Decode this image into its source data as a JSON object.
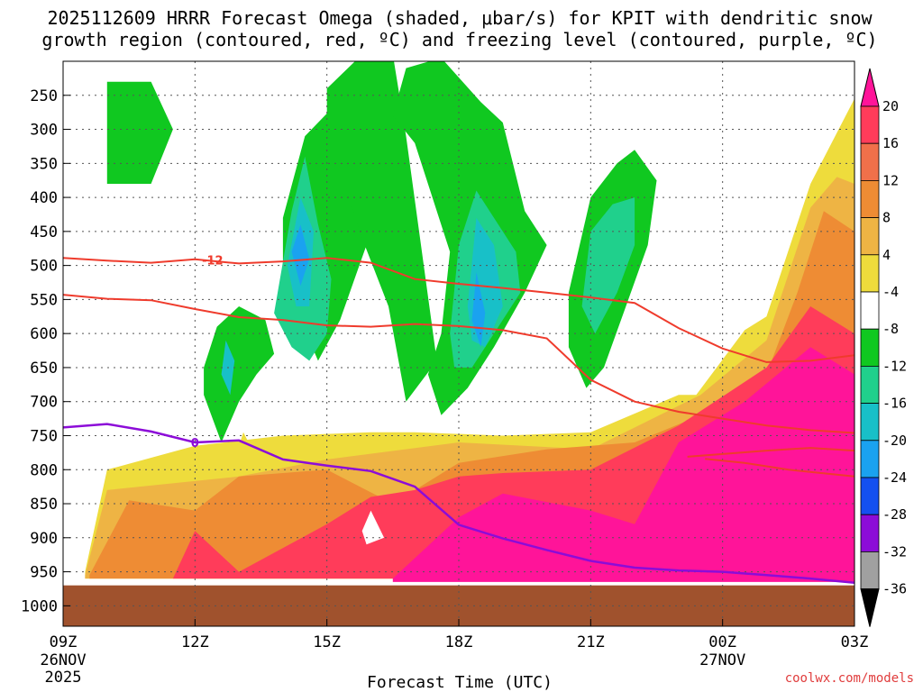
{
  "chart_data": {
    "type": "contour",
    "title_line1": "2025112609 HRRR Forecast Omega (shaded, μbar/s) for KPIT with dendritic snow",
    "title_line2": "growth region (contoured, red, ºC) and freezing level (contoured, purple, ºC)",
    "xlabel": "Forecast Time (UTC)",
    "credit": "coolwx.com/models",
    "x_hours": [
      0,
      3,
      6,
      9,
      12,
      15,
      18
    ],
    "x_tick_labels": [
      "09Z",
      "12Z",
      "15Z",
      "18Z",
      "21Z",
      "00Z",
      "03Z"
    ],
    "x_date_labels": [
      {
        "hour": 0,
        "lines": [
          "26NOV",
          "2025"
        ]
      },
      {
        "hour": 15,
        "lines": [
          "27NOV"
        ]
      }
    ],
    "y_levels_hpa": [
      250,
      300,
      350,
      400,
      450,
      500,
      550,
      600,
      650,
      700,
      750,
      800,
      850,
      900,
      950,
      1000
    ],
    "y_range_hpa": [
      200,
      1030
    ],
    "ground_level_hpa": 970,
    "colorbar": {
      "labels": [
        "20",
        "16",
        "12",
        "8",
        "4",
        "-4",
        "-8",
        "-12",
        "-16",
        "-20",
        "-24",
        "-28",
        "-32",
        "-36"
      ],
      "colors": [
        "#ff3c5a",
        "#f0704a",
        "#ee8c34",
        "#eeb444",
        "#eedc3c",
        "#ffffff",
        "#10c820",
        "#20d08c",
        "#18c0c8",
        "#1aa2f0",
        "#1450f0",
        "#8c0cd8",
        "#a0a0a0"
      ],
      "top_color": "#ff1499",
      "bottom_color": "#000000"
    },
    "red_contours": [
      {
        "label": "-12",
        "label_hour": 3.4,
        "points": [
          [
            0,
            489
          ],
          [
            1,
            493
          ],
          [
            2,
            496
          ],
          [
            3,
            491
          ],
          [
            4,
            497
          ],
          [
            5,
            494
          ],
          [
            6,
            489
          ],
          [
            7,
            496
          ],
          [
            8,
            520
          ],
          [
            9,
            527
          ],
          [
            10,
            533
          ],
          [
            11,
            540
          ],
          [
            12,
            547
          ],
          [
            13,
            555
          ],
          [
            14,
            592
          ],
          [
            15,
            622
          ],
          [
            16,
            642
          ],
          [
            17,
            640
          ],
          [
            18,
            632
          ]
        ]
      },
      {
        "points": [
          [
            0,
            543
          ],
          [
            1,
            549
          ],
          [
            2,
            551
          ],
          [
            3,
            564
          ],
          [
            4,
            576
          ],
          [
            5,
            580
          ],
          [
            6,
            588
          ],
          [
            7,
            590
          ],
          [
            8,
            586
          ],
          [
            9,
            589
          ],
          [
            10,
            595
          ],
          [
            11,
            607
          ],
          [
            12,
            668
          ],
          [
            13,
            700
          ],
          [
            14,
            715
          ],
          [
            15,
            725
          ],
          [
            16,
            735
          ],
          [
            17,
            742
          ],
          [
            18,
            746
          ]
        ]
      },
      {
        "points": [
          [
            14.2,
            781
          ],
          [
            15,
            777
          ],
          [
            16,
            772
          ],
          [
            17,
            768
          ],
          [
            18,
            772
          ]
        ]
      },
      {
        "points": [
          [
            14.6,
            784
          ],
          [
            15.5,
            790
          ],
          [
            16.5,
            800
          ],
          [
            18,
            810
          ]
        ]
      }
    ],
    "purple_contour": {
      "label": "0",
      "label_hour": 3,
      "points": [
        [
          0,
          738
        ],
        [
          1,
          733
        ],
        [
          2,
          744
        ],
        [
          3,
          760
        ],
        [
          4,
          757
        ],
        [
          5,
          785
        ],
        [
          6,
          794
        ],
        [
          7,
          802
        ],
        [
          8,
          825
        ],
        [
          9,
          881
        ],
        [
          10,
          901
        ],
        [
          11,
          918
        ],
        [
          12,
          934
        ],
        [
          13,
          944
        ],
        [
          14,
          948
        ],
        [
          15,
          950
        ],
        [
          16,
          955
        ],
        [
          17,
          960
        ],
        [
          18,
          966
        ]
      ]
    },
    "omega_regions": [
      {
        "value": 8,
        "color": "#eedc3c",
        "points": [
          [
            0.5,
            950
          ],
          [
            1,
            800
          ],
          [
            3,
            765
          ],
          [
            5,
            750
          ],
          [
            7,
            745
          ],
          [
            8,
            745
          ],
          [
            10,
            750
          ],
          [
            12,
            745
          ],
          [
            14,
            690
          ],
          [
            14.4,
            690
          ],
          [
            15.5,
            595
          ],
          [
            16,
            575
          ],
          [
            17,
            380
          ],
          [
            18,
            255
          ],
          [
            18,
            960
          ],
          [
            0.5,
            960
          ]
        ]
      },
      {
        "value": 10,
        "color": "#eeb444",
        "points": [
          [
            0.5,
            955
          ],
          [
            1,
            830
          ],
          [
            4,
            810
          ],
          [
            6,
            785
          ],
          [
            9,
            760
          ],
          [
            12,
            770
          ],
          [
            14.5,
            690
          ],
          [
            16,
            610
          ],
          [
            17,
            415
          ],
          [
            17.6,
            370
          ],
          [
            18,
            380
          ],
          [
            18,
            960
          ],
          [
            0.5,
            960
          ]
        ]
      },
      {
        "value": 14,
        "color": "#ee8c34",
        "points": [
          [
            0.6,
            955
          ],
          [
            1.5,
            845
          ],
          [
            3,
            860
          ],
          [
            4,
            810
          ],
          [
            6,
            800
          ],
          [
            7.5,
            850
          ],
          [
            9,
            790
          ],
          [
            11,
            770
          ],
          [
            13,
            760
          ],
          [
            14.5,
            720
          ],
          [
            16,
            660
          ],
          [
            16.7,
            540
          ],
          [
            17.3,
            420
          ],
          [
            18,
            450
          ],
          [
            18,
            960
          ],
          [
            0.6,
            960
          ]
        ]
      },
      {
        "value": 18,
        "color": "#ff3c5a",
        "points": [
          [
            2.5,
            960
          ],
          [
            3,
            890
          ],
          [
            4,
            950
          ],
          [
            6,
            880
          ],
          [
            7,
            840
          ],
          [
            8,
            830
          ],
          [
            9,
            810
          ],
          [
            10,
            805
          ],
          [
            12,
            800
          ],
          [
            14,
            735
          ],
          [
            16,
            650
          ],
          [
            17,
            560
          ],
          [
            18,
            600
          ],
          [
            18,
            960
          ],
          [
            2.5,
            960
          ]
        ]
      },
      {
        "value": 22,
        "color": "#ff1499",
        "points": [
          [
            7.5,
            960
          ],
          [
            9,
            870
          ],
          [
            10,
            835
          ],
          [
            12,
            860
          ],
          [
            13,
            880
          ],
          [
            14,
            760
          ],
          [
            15.5,
            700
          ],
          [
            17,
            620
          ],
          [
            18,
            660
          ],
          [
            18,
            965
          ],
          [
            7.5,
            965
          ]
        ]
      },
      {
        "value": -6,
        "color": "#10c820",
        "points": [
          [
            1,
            300
          ],
          [
            1,
            230
          ],
          [
            2,
            230
          ],
          [
            2.5,
            300
          ],
          [
            2,
            380
          ],
          [
            1,
            380
          ]
        ]
      },
      {
        "value": -6,
        "color": "#10c820",
        "points": [
          [
            3.2,
            650
          ],
          [
            3.5,
            590
          ],
          [
            4,
            560
          ],
          [
            4.6,
            580
          ],
          [
            4.8,
            630
          ],
          [
            4.4,
            660
          ],
          [
            4,
            700
          ],
          [
            3.6,
            760
          ],
          [
            3.2,
            690
          ]
        ]
      },
      {
        "value": -6,
        "color": "#10c820",
        "points": [
          [
            5,
            430
          ],
          [
            5.5,
            310
          ],
          [
            6.4,
            250
          ],
          [
            6.8,
            200
          ],
          [
            7,
            330
          ],
          [
            6.9,
            470
          ],
          [
            6.3,
            580
          ],
          [
            5.8,
            640
          ],
          [
            5.4,
            580
          ],
          [
            5,
            520
          ]
        ]
      },
      {
        "value": -6,
        "color": "#10c820",
        "points": [
          [
            6,
            380
          ],
          [
            6,
            240
          ],
          [
            6.8,
            190
          ],
          [
            7.5,
            190
          ],
          [
            7.8,
            310
          ],
          [
            8.5,
            640
          ],
          [
            7.8,
            700
          ],
          [
            7.4,
            560
          ],
          [
            6.8,
            460
          ],
          [
            6.5,
            400
          ]
        ]
      },
      {
        "value": -6,
        "color": "#10c820",
        "points": [
          [
            7.5,
            280
          ],
          [
            7.8,
            210
          ],
          [
            8.6,
            195
          ],
          [
            9.5,
            260
          ],
          [
            10,
            290
          ],
          [
            10.5,
            420
          ],
          [
            11,
            470
          ],
          [
            10.5,
            540
          ],
          [
            9.8,
            620
          ],
          [
            9.2,
            680
          ],
          [
            8.6,
            720
          ],
          [
            8.3,
            660
          ],
          [
            8.6,
            600
          ],
          [
            8.8,
            480
          ],
          [
            8.4,
            400
          ],
          [
            8,
            320
          ]
        ]
      },
      {
        "value": -6,
        "color": "#10c820",
        "points": [
          [
            11.5,
            540
          ],
          [
            12,
            400
          ],
          [
            12.6,
            350
          ],
          [
            13,
            330
          ],
          [
            13.5,
            375
          ],
          [
            13.3,
            470
          ],
          [
            12.8,
            560
          ],
          [
            12.3,
            650
          ],
          [
            11.9,
            680
          ],
          [
            11.5,
            620
          ]
        ]
      },
      {
        "value": -10,
        "color": "#20d08c",
        "points": [
          [
            4.8,
            570
          ],
          [
            5.2,
            420
          ],
          [
            5.5,
            340
          ],
          [
            5.8,
            440
          ],
          [
            6.1,
            520
          ],
          [
            6,
            600
          ],
          [
            5.6,
            640
          ],
          [
            5.2,
            620
          ]
        ]
      },
      {
        "value": -10,
        "color": "#20d08c",
        "points": [
          [
            8.8,
            600
          ],
          [
            9,
            470
          ],
          [
            9.4,
            390
          ],
          [
            9.8,
            430
          ],
          [
            10.3,
            480
          ],
          [
            10.4,
            540
          ],
          [
            9.8,
            600
          ],
          [
            9.3,
            650
          ],
          [
            8.9,
            650
          ]
        ]
      },
      {
        "value": -10,
        "color": "#20d08c",
        "points": [
          [
            11.8,
            560
          ],
          [
            12,
            450
          ],
          [
            12.5,
            410
          ],
          [
            13,
            400
          ],
          [
            13,
            470
          ],
          [
            12.6,
            540
          ],
          [
            12.1,
            600
          ]
        ]
      },
      {
        "value": -14,
        "color": "#18c0c8",
        "points": [
          [
            5.1,
            500
          ],
          [
            5.4,
            400
          ],
          [
            5.7,
            450
          ],
          [
            5.6,
            560
          ],
          [
            5.3,
            560
          ]
        ]
      },
      {
        "value": -14,
        "color": "#18c0c8",
        "points": [
          [
            9.2,
            560
          ],
          [
            9.4,
            430
          ],
          [
            9.8,
            470
          ],
          [
            10,
            560
          ],
          [
            9.6,
            620
          ],
          [
            9.3,
            610
          ]
        ]
      },
      {
        "value": -14,
        "color": "#18c0c8",
        "points": [
          [
            3.6,
            660
          ],
          [
            3.7,
            610
          ],
          [
            3.9,
            640
          ],
          [
            3.8,
            690
          ]
        ]
      },
      {
        "value": -18,
        "color": "#1aa2f0",
        "points": [
          [
            5.2,
            480
          ],
          [
            5.4,
            440
          ],
          [
            5.6,
            490
          ],
          [
            5.4,
            530
          ]
        ]
      },
      {
        "value": -18,
        "color": "#1aa2f0",
        "points": [
          [
            9.3,
            580
          ],
          [
            9.4,
            510
          ],
          [
            9.6,
            570
          ],
          [
            9.5,
            620
          ]
        ]
      },
      {
        "value": 0,
        "color": "#ffffff",
        "points": [
          [
            6.8,
            890
          ],
          [
            7,
            860
          ],
          [
            7.3,
            900
          ],
          [
            6.9,
            910
          ]
        ]
      },
      {
        "value": 2,
        "color": "#eedc3c",
        "points": [
          [
            3.9,
            785
          ],
          [
            4.1,
            745
          ],
          [
            4.3,
            770
          ],
          [
            4.3,
            795
          ],
          [
            4,
            800
          ]
        ]
      }
    ]
  }
}
